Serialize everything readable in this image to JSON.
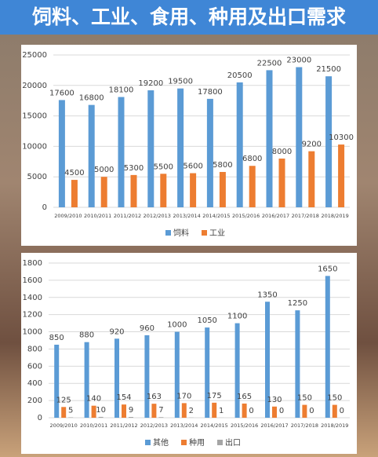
{
  "title": "饲料、工业、食用、种用及出口需求",
  "chart_data": [
    {
      "type": "bar",
      "categories": [
        "2009/2010",
        "2010/2011",
        "2011/2012",
        "2012/2013",
        "2013/2014",
        "2014/2015",
        "2015/2016",
        "2016/2017",
        "2017/2018",
        "2018/2019"
      ],
      "series": [
        {
          "name": "饲料",
          "color": "#5b9bd5",
          "values": [
            17600,
            16800,
            18100,
            19200,
            19500,
            17800,
            20500,
            22500,
            23000,
            21500
          ]
        },
        {
          "name": "工业",
          "color": "#ed7d31",
          "values": [
            4500,
            5000,
            5300,
            5500,
            5600,
            5800,
            6800,
            8000,
            9200,
            10300
          ]
        }
      ],
      "ylim": [
        0,
        25000
      ],
      "yticks": [
        0,
        5000,
        10000,
        15000,
        20000,
        25000
      ],
      "grid": true,
      "legend": "bottom"
    },
    {
      "type": "bar",
      "categories": [
        "2009/2010",
        "2010/2011",
        "2011/2012",
        "2012/2013",
        "2013/2014",
        "2014/2015",
        "2015/2016",
        "2016/2017",
        "2017/2018",
        "2018/2019"
      ],
      "series": [
        {
          "name": "其他",
          "color": "#5b9bd5",
          "values": [
            850,
            880,
            920,
            960,
            1000,
            1050,
            1100,
            1350,
            1250,
            1650
          ]
        },
        {
          "name": "种用",
          "color": "#ed7d31",
          "values": [
            125,
            140,
            154,
            163,
            170,
            175,
            165,
            130,
            150,
            150
          ]
        },
        {
          "name": "出口",
          "color": "#a5a5a5",
          "values": [
            5,
            10,
            9,
            7,
            2,
            1,
            0,
            0,
            0,
            0
          ]
        }
      ],
      "ylim": [
        0,
        1800
      ],
      "yticks": [
        0,
        200,
        400,
        600,
        800,
        1000,
        1200,
        1400,
        1600,
        1800
      ],
      "grid": true,
      "legend": "bottom"
    }
  ]
}
